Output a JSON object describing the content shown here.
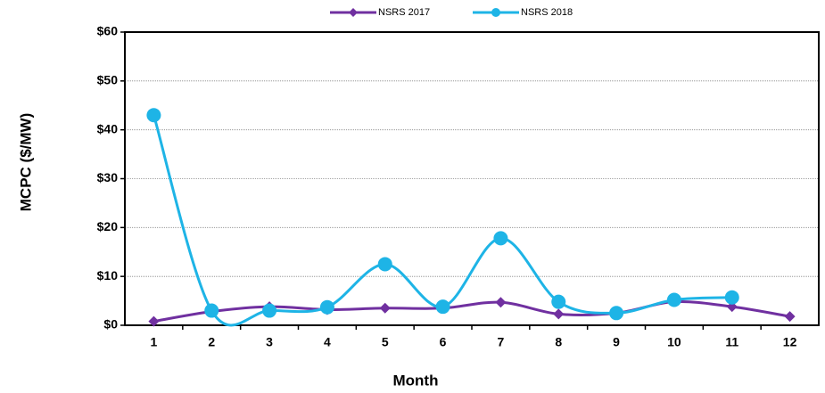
{
  "chart_data": {
    "type": "line",
    "x_label": "Month",
    "y_label": "MCPC ($/MW)",
    "categories": [
      "1",
      "2",
      "3",
      "4",
      "5",
      "6",
      "7",
      "8",
      "9",
      "10",
      "11",
      "12"
    ],
    "series": [
      {
        "name": "NSRS 2017",
        "color": "#7030a0",
        "marker": "diamond",
        "values": [
          0.8,
          2.8,
          3.8,
          3.2,
          3.5,
          3.5,
          4.7,
          2.3,
          2.5,
          4.8,
          3.8,
          1.8
        ]
      },
      {
        "name": "NSRS 2018",
        "color": "#1eb4e6",
        "marker": "circle",
        "values": [
          43,
          3,
          3,
          3.7,
          12.5,
          3.8,
          17.8,
          4.8,
          2.5,
          5.2,
          5.7,
          null
        ]
      }
    ],
    "ylim": [
      0,
      60
    ],
    "yticks": [
      {
        "value": 0,
        "label": "$0"
      },
      {
        "value": 10,
        "label": "$10"
      },
      {
        "value": 20,
        "label": "$20"
      },
      {
        "value": 30,
        "label": "$30"
      },
      {
        "value": 40,
        "label": "$40"
      },
      {
        "value": 50,
        "label": "$50"
      },
      {
        "value": 60,
        "label": "$60"
      }
    ],
    "grid": true,
    "smooth": true,
    "legend": "top"
  }
}
